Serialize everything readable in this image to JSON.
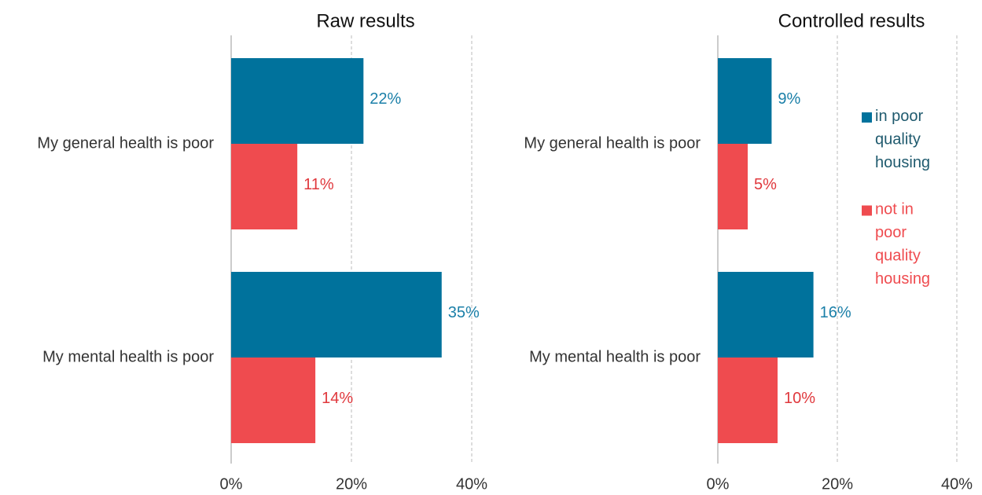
{
  "chart_data": [
    {
      "type": "bar",
      "title": "Raw results",
      "categories": [
        "My general health is poor",
        "My mental health is poor"
      ],
      "series": [
        {
          "color": "#00729c",
          "values": [
            22,
            35
          ],
          "value_labels": [
            "22%",
            "35%"
          ]
        },
        {
          "color": "#ef4b4f",
          "values": [
            11,
            14
          ],
          "value_labels": [
            "11%",
            "14%"
          ]
        }
      ],
      "xlim": [
        0,
        40
      ],
      "xticks": [
        {
          "value": 0,
          "label": "0%"
        },
        {
          "value": 20,
          "label": "20%"
        },
        {
          "value": 40,
          "label": "40%"
        }
      ],
      "grid": true
    },
    {
      "type": "bar",
      "title": "Controlled results",
      "categories": [
        "My general health is poor",
        "My mental health is poor"
      ],
      "series": [
        {
          "name": "in poor quality housing",
          "color": "#00729c",
          "values": [
            9,
            16
          ],
          "value_labels": [
            "9%",
            "16%"
          ]
        },
        {
          "name": "not in poor quality housing",
          "color": "#ef4b4f",
          "values": [
            5,
            10
          ],
          "value_labels": [
            "5%",
            "10%"
          ]
        }
      ],
      "xlim": [
        0,
        40
      ],
      "xticks": [
        {
          "value": 0,
          "label": "0%"
        },
        {
          "value": 20,
          "label": "20%"
        },
        {
          "value": 40,
          "label": "40%"
        }
      ],
      "grid": true,
      "legend": "right"
    }
  ]
}
